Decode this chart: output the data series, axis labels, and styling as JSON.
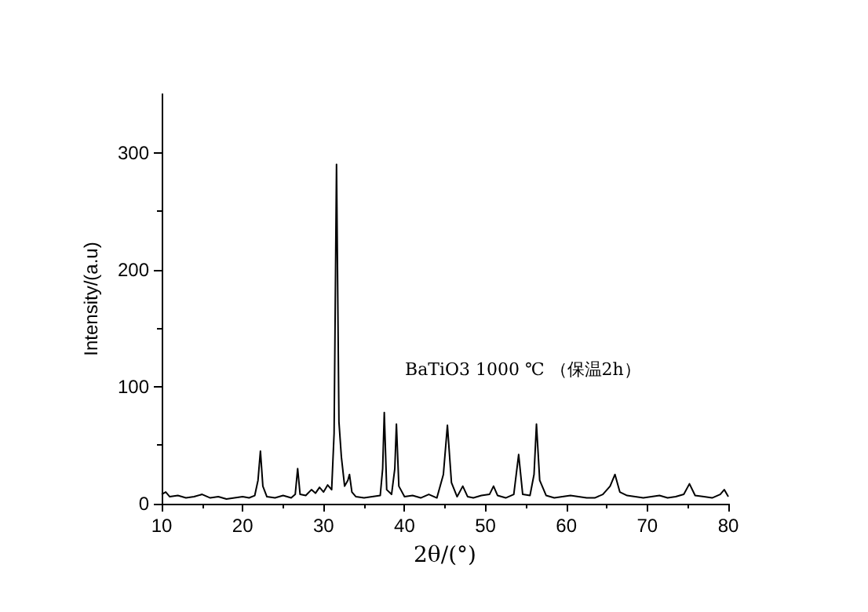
{
  "chart_data": {
    "type": "line",
    "xlabel": "2θ/(°)",
    "ylabel": "Intensity/(a.u)",
    "annotations": [
      "BaTiO3 1000 ℃ （保温2h）"
    ],
    "xlim": [
      10,
      80
    ],
    "xticks": [
      10,
      20,
      30,
      40,
      50,
      60,
      70,
      80
    ],
    "ylim": [
      0,
      350
    ],
    "yticks": [
      0,
      100,
      200,
      300
    ],
    "grid": false,
    "marker": "none",
    "line_style": "solid",
    "series": [
      {
        "color": "#000000",
        "x": [
          10,
          10.5,
          11,
          12,
          13,
          14,
          15,
          16,
          17,
          18,
          19,
          20,
          20.8,
          21.5,
          21.9,
          22.2,
          22.5,
          23,
          24,
          25,
          26,
          26.5,
          26.8,
          27.1,
          27.8,
          28.5,
          29,
          29.5,
          30,
          30.5,
          31,
          31.3,
          31.6,
          31.9,
          32.2,
          32.6,
          33,
          33.2,
          33.5,
          34,
          35,
          36,
          37,
          37.3,
          37.5,
          37.8,
          38.4,
          38.8,
          39,
          39.3,
          40,
          41,
          42,
          43,
          44,
          44.8,
          45.3,
          45.8,
          46.5,
          47.2,
          47.8,
          48.5,
          49.5,
          50.5,
          51,
          51.5,
          52.5,
          53.5,
          54.1,
          54.6,
          55.5,
          56,
          56.3,
          56.7,
          57.5,
          58.5,
          59.5,
          60.5,
          61.5,
          62.5,
          63.5,
          64.5,
          65.4,
          66,
          66.6,
          67.5,
          68.5,
          69.5,
          70.5,
          71.5,
          72.5,
          73.5,
          74.5,
          75.2,
          75.9,
          77,
          78,
          79,
          79.5,
          80
        ],
        "values": [
          8,
          10,
          6,
          7,
          5,
          6,
          8,
          5,
          6,
          4,
          5,
          6,
          5,
          7,
          20,
          45,
          15,
          6,
          5,
          7,
          5,
          8,
          30,
          8,
          7,
          12,
          9,
          14,
          10,
          16,
          12,
          60,
          290,
          70,
          40,
          15,
          20,
          25,
          10,
          6,
          5,
          6,
          7,
          30,
          78,
          12,
          8,
          30,
          68,
          15,
          6,
          7,
          5,
          8,
          5,
          25,
          67,
          18,
          6,
          15,
          6,
          5,
          7,
          8,
          15,
          7,
          5,
          8,
          42,
          8,
          7,
          25,
          68,
          20,
          7,
          5,
          6,
          7,
          6,
          5,
          5,
          8,
          15,
          25,
          10,
          7,
          6,
          5,
          6,
          7,
          5,
          6,
          8,
          17,
          7,
          6,
          5,
          8,
          12,
          6
        ]
      }
    ]
  }
}
